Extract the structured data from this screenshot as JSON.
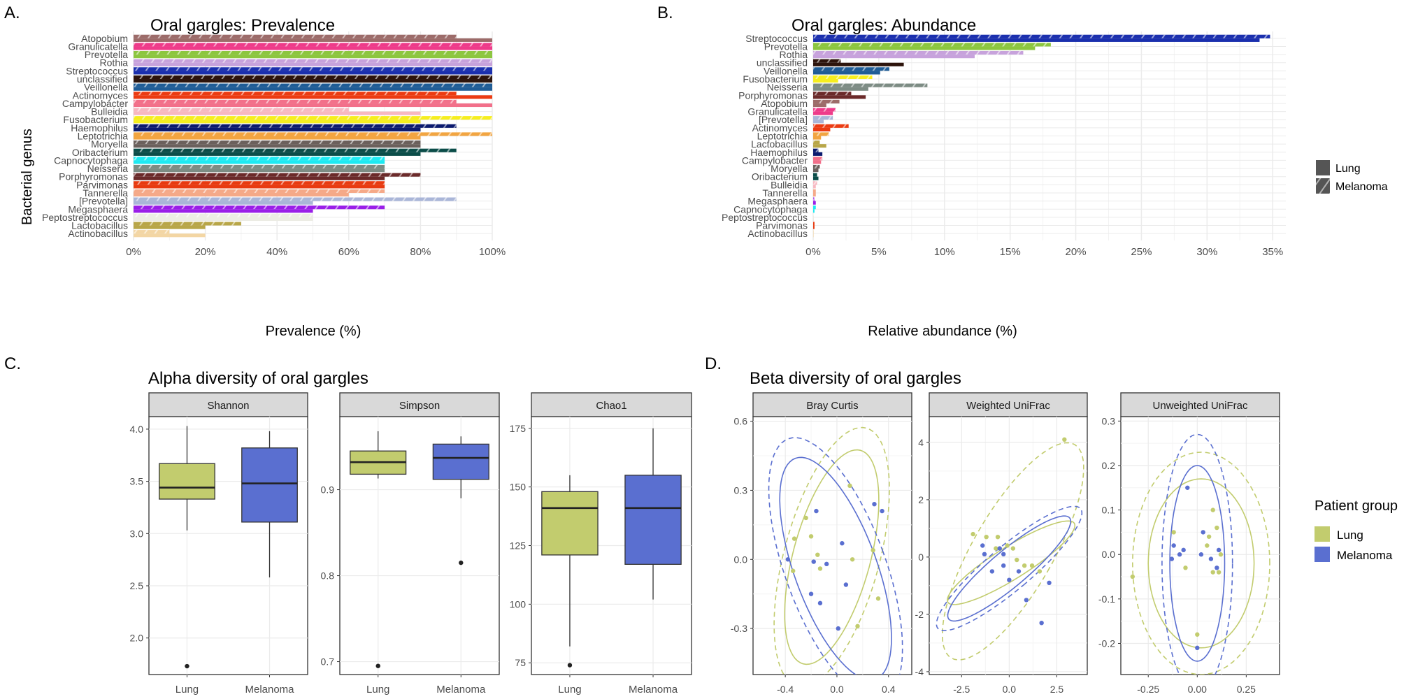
{
  "colors": {
    "lung": "#c2cc6e",
    "melanoma": "#5a6fd0",
    "strip": "#d9d9d9",
    "grid": "#ebebeb",
    "genus": {
      "Atopobium": "#9c6b69",
      "Granulicatella": "#ee3b8a",
      "Prevotella": "#8cc63f",
      "Rothia": "#c7a2dc",
      "Streptococcus": "#1a2fae",
      "unclassified": "#2d140c",
      "Veillonella": "#1f5c96",
      "Actinomyces": "#ec3b12",
      "Campylobacter": "#f2708a",
      "Bulleidia": "#f7b8c1",
      "Fusobacterium": "#f6ee1e",
      "Haemophilus": "#0b1a6e",
      "Leptotrichia": "#f2a541",
      "Moryella": "#6b605c",
      "Oribacterium": "#0b4d49",
      "Capnocytophaga": "#1eeaf2",
      "Neisseria": "#7d8c84",
      "Porphyromonas": "#6b2a2a",
      "Parvimonas": "#e83a10",
      "Tannerella": "#f5a988",
      "[Prevotella]": "#aab6d8",
      "Megasphaera": "#9a1ee8",
      "Peptostreptococcus": "#ecece4",
      "Lactobacillus": "#b8a648",
      "Actinobacillus": "#f3d6a4"
    }
  },
  "panels": {
    "a": {
      "label": "A.",
      "title": "Oral gargles: Prevalence"
    },
    "b": {
      "label": "B.",
      "title": "Oral gargles: Abundance"
    },
    "c": {
      "label": "C.",
      "title": "Alpha diversity of oral gargles"
    },
    "d": {
      "label": "D.",
      "title": "Beta diversity of oral gargles"
    }
  },
  "legend_bars": {
    "lung": "Lung",
    "melanoma": "Melanoma"
  },
  "legend_group": {
    "title": "Patient group",
    "lung": "Lung",
    "melanoma": "Melanoma"
  },
  "chart_data": [
    {
      "id": "prevalence",
      "type": "bar",
      "orientation": "horizontal",
      "title": "Oral gargles: Prevalence",
      "xlabel": "Prevalence (%)",
      "ylabel": "Bacterial genus",
      "xlim": [
        0,
        100
      ],
      "xticks": [
        0,
        20,
        40,
        60,
        80,
        100
      ],
      "xtick_labels": [
        "0%",
        "20%",
        "40%",
        "60%",
        "80%",
        "100%"
      ],
      "categories": [
        "Atopobium",
        "Granulicatella",
        "Prevotella",
        "Rothia",
        "Streptococcus",
        "unclassified",
        "Veillonella",
        "Actinomyces",
        "Campylobacter",
        "Bulleidia",
        "Fusobacterium",
        "Haemophilus",
        "Leptotrichia",
        "Moryella",
        "Oribacterium",
        "Capnocytophaga",
        "Neisseria",
        "Porphyromonas",
        "Parvimonas",
        "Tannerella",
        "[Prevotella]",
        "Megasphaera",
        "Peptostreptococcus",
        "Lactobacillus",
        "Actinobacillus"
      ],
      "series": [
        {
          "name": "Melanoma",
          "values": [
            90,
            100,
            100,
            100,
            100,
            100,
            100,
            90,
            90,
            60,
            100,
            90,
            100,
            80,
            90,
            70,
            70,
            80,
            70,
            70,
            90,
            70,
            50,
            30,
            10
          ]
        },
        {
          "name": "Lung",
          "values": [
            100,
            100,
            100,
            100,
            100,
            100,
            100,
            100,
            100,
            80,
            80,
            80,
            80,
            80,
            80,
            70,
            70,
            70,
            70,
            60,
            50,
            50,
            50,
            20,
            20
          ]
        }
      ]
    },
    {
      "id": "abundance",
      "type": "bar",
      "orientation": "horizontal",
      "title": "Oral gargles: Abundance",
      "xlabel": "Relative abundance (%)",
      "xlim": [
        0,
        36
      ],
      "xticks": [
        0,
        5,
        10,
        15,
        20,
        25,
        30,
        35
      ],
      "xtick_labels": [
        "0%",
        "5%",
        "10%",
        "15%",
        "20%",
        "25%",
        "30%",
        "35%"
      ],
      "categories": [
        "Streptococcus",
        "Prevotella",
        "Rothia",
        "unclassified",
        "Veillonella",
        "Fusobacterium",
        "Neisseria",
        "Porphyromonas",
        "Atopobium",
        "Granulicatella",
        "[Prevotella]",
        "Actinomyces",
        "Leptotrichia",
        "Lactobacillus",
        "Haemophilus",
        "Campylobacter",
        "Moryella",
        "Oribacterium",
        "Bulleidia",
        "Tannerella",
        "Megasphaera",
        "Capnocytophaga",
        "Peptostreptococcus",
        "Parvimonas",
        "Actinobacillus"
      ],
      "series": [
        {
          "name": "Melanoma",
          "values": [
            34.8,
            18.1,
            16.0,
            2.1,
            5.8,
            4.5,
            8.7,
            2.9,
            2.0,
            1.7,
            1.5,
            2.7,
            1.2,
            0.5,
            0.4,
            0.7,
            0.5,
            0.3,
            0.3,
            0.2,
            0.1,
            0.2,
            0.05,
            0.1,
            0.03
          ]
        },
        {
          "name": "Lung",
          "values": [
            34.0,
            16.9,
            12.3,
            6.9,
            5.1,
            1.9,
            4.2,
            4.0,
            1.0,
            1.5,
            0.8,
            1.3,
            0.6,
            1.0,
            0.7,
            0.6,
            0.4,
            0.4,
            0.2,
            0.2,
            0.2,
            0.1,
            0.05,
            0.1,
            0.03
          ]
        }
      ],
      "legend": [
        "Lung",
        "Melanoma"
      ]
    },
    {
      "id": "alpha",
      "type": "boxplot",
      "title": "Alpha diversity of oral gargles",
      "groups": [
        "Lung",
        "Melanoma"
      ],
      "facets": [
        {
          "name": "Shannon",
          "ylim": [
            1.65,
            4.12
          ],
          "yticks": [
            2.0,
            2.5,
            3.0,
            3.5,
            4.0
          ],
          "ytick_labels": [
            "2.0",
            "2.5",
            "3.0",
            "3.5",
            "4.0"
          ],
          "boxes": [
            {
              "group": "Lung",
              "min": 3.03,
              "q1": 3.33,
              "median": 3.44,
              "q3": 3.67,
              "max": 4.03,
              "outliers": [
                1.73
              ]
            },
            {
              "group": "Melanoma",
              "min": 2.58,
              "q1": 3.11,
              "median": 3.48,
              "q3": 3.82,
              "max": 3.98,
              "outliers": []
            }
          ]
        },
        {
          "name": "Simpson",
          "ylim": [
            0.685,
            0.985
          ],
          "yticks": [
            0.7,
            0.8,
            0.9
          ],
          "ytick_labels": [
            "0.7",
            "0.8",
            "0.9"
          ],
          "boxes": [
            {
              "group": "Lung",
              "min": 0.913,
              "q1": 0.918,
              "median": 0.932,
              "q3": 0.945,
              "max": 0.968,
              "outliers": [
                0.695
              ]
            },
            {
              "group": "Melanoma",
              "min": 0.89,
              "q1": 0.912,
              "median": 0.937,
              "q3": 0.953,
              "max": 0.962,
              "outliers": [
                0.815
              ]
            }
          ]
        },
        {
          "name": "Chao1",
          "ylim": [
            70,
            180
          ],
          "yticks": [
            75,
            100,
            125,
            150,
            175
          ],
          "ytick_labels": [
            "75",
            "100",
            "125",
            "150",
            "175"
          ],
          "boxes": [
            {
              "group": "Lung",
              "min": 82,
              "q1": 121,
              "median": 141,
              "q3": 148,
              "max": 155,
              "outliers": [
                74
              ]
            },
            {
              "group": "Melanoma",
              "min": 102,
              "q1": 117,
              "median": 141,
              "q3": 155,
              "max": 175,
              "outliers": []
            }
          ]
        }
      ]
    },
    {
      "id": "beta",
      "type": "scatter",
      "title": "Beta diversity of oral gargles",
      "legend_title": "Patient group",
      "groups": [
        "Lung",
        "Melanoma"
      ],
      "facets": [
        {
          "name": "Bray Curtis",
          "xlim": [
            -0.65,
            0.58
          ],
          "ylim": [
            -0.5,
            0.62
          ],
          "xticks": [
            -0.4,
            0.0,
            0.4
          ],
          "xtick_labels": [
            "-0.4",
            "0.0",
            "0.4"
          ],
          "yticks": [
            -0.3,
            0.0,
            0.3,
            0.6
          ],
          "ytick_labels": [
            "-0.3",
            "0.0",
            "0.3",
            "0.6"
          ],
          "lung": [
            [
              -0.24,
              0.18
            ],
            [
              -0.2,
              0.1
            ],
            [
              -0.33,
              0.09
            ],
            [
              -0.15,
              0.02
            ],
            [
              -0.13,
              -0.04
            ],
            [
              -0.34,
              -0.05
            ],
            [
              0.1,
              0.32
            ],
            [
              0.12,
              0.0
            ],
            [
              0.16,
              -0.29
            ],
            [
              0.32,
              -0.17
            ],
            [
              0.28,
              0.04
            ]
          ],
          "melanoma": [
            [
              -0.16,
              0.21
            ],
            [
              -0.18,
              -0.01
            ],
            [
              -0.08,
              -0.02
            ],
            [
              0.29,
              0.24
            ],
            [
              0.35,
              0.21
            ],
            [
              0.04,
              0.07
            ],
            [
              0.07,
              -0.11
            ],
            [
              -0.2,
              -0.15
            ],
            [
              -0.13,
              -0.19
            ],
            [
              0.01,
              -0.3
            ],
            [
              -0.38,
              0.0
            ]
          ],
          "ellipses": [
            {
              "group": "Lung",
              "style": "solid",
              "cx": -0.04,
              "cy": 0.01,
              "rx": 0.3,
              "ry": 0.48,
              "angle": -15
            },
            {
              "group": "Lung",
              "style": "dashed",
              "cx": -0.04,
              "cy": 0.01,
              "rx": 0.37,
              "ry": 0.58,
              "angle": -15
            },
            {
              "group": "Melanoma",
              "style": "solid",
              "cx": -0.01,
              "cy": -0.04,
              "rx": 0.32,
              "ry": 0.51,
              "angle": 20
            },
            {
              "group": "Melanoma",
              "style": "dashed",
              "cx": -0.01,
              "cy": -0.04,
              "rx": 0.39,
              "ry": 0.6,
              "angle": 20
            }
          ]
        },
        {
          "name": "Weighted UniFrac",
          "xlim": [
            -4.2,
            4.1
          ],
          "ylim": [
            -4.1,
            4.9
          ],
          "xticks": [
            -2.5,
            0.0,
            2.5
          ],
          "xtick_labels": [
            "-2.5",
            "0.0",
            "2.5"
          ],
          "yticks": [
            -4,
            -2,
            0,
            2,
            4
          ],
          "ytick_labels": [
            "-4",
            "-2",
            "0",
            "2",
            "4"
          ],
          "lung": [
            [
              -1.9,
              0.8
            ],
            [
              -1.2,
              0.7
            ],
            [
              -0.6,
              0.7
            ],
            [
              -0.1,
              0.4
            ],
            [
              0.2,
              0.3
            ],
            [
              0.4,
              -0.1
            ],
            [
              0.8,
              -0.3
            ],
            [
              1.2,
              -0.3
            ],
            [
              1.6,
              -0.5
            ],
            [
              -0.7,
              0.3
            ],
            [
              2.9,
              4.1
            ]
          ],
          "melanoma": [
            [
              -1.4,
              0.4
            ],
            [
              -0.5,
              0.3
            ],
            [
              -0.3,
              0.1
            ],
            [
              -0.3,
              -0.3
            ],
            [
              -0.9,
              -0.5
            ],
            [
              0.0,
              -0.8
            ],
            [
              0.5,
              -0.5
            ],
            [
              0.9,
              -1.5
            ],
            [
              1.7,
              -2.3
            ],
            [
              2.1,
              -0.9
            ],
            [
              -1.3,
              0.1
            ]
          ],
          "ellipses": [
            {
              "group": "Lung",
              "style": "solid",
              "cx": 0.1,
              "cy": -0.2,
              "rx": 0.85,
              "ry": 2.6,
              "angle": -58
            },
            {
              "group": "Lung",
              "style": "dashed",
              "cx": 0.2,
              "cy": 0.2,
              "rx": 2.1,
              "ry": 4.3,
              "angle": -30
            },
            {
              "group": "Melanoma",
              "style": "solid",
              "cx": 0.0,
              "cy": -0.4,
              "rx": 0.95,
              "ry": 2.75,
              "angle": -50
            },
            {
              "group": "Melanoma",
              "style": "dashed",
              "cx": 0.0,
              "cy": -0.4,
              "rx": 1.15,
              "ry": 3.25,
              "angle": -50
            }
          ]
        },
        {
          "name": "Unweighted UniFrac",
          "xlim": [
            -0.39,
            0.42
          ],
          "ylim": [
            -0.27,
            0.31
          ],
          "xticks": [
            -0.25,
            0.0,
            0.25
          ],
          "xtick_labels": [
            "-0.25",
            "0.00",
            "0.25"
          ],
          "yticks": [
            -0.2,
            -0.1,
            0.0,
            0.1,
            0.2,
            0.3
          ],
          "ytick_labels": [
            "-0.2",
            "-0.1",
            "0.0",
            "0.1",
            "0.2",
            "0.3"
          ],
          "lung": [
            [
              0.08,
              0.1
            ],
            [
              0.1,
              0.06
            ],
            [
              0.06,
              0.04
            ],
            [
              0.12,
              0.0
            ],
            [
              0.08,
              -0.04
            ],
            [
              0.11,
              -0.04
            ],
            [
              -0.33,
              -0.05
            ],
            [
              -0.06,
              -0.03
            ],
            [
              0.0,
              -0.18
            ],
            [
              -0.12,
              0.05
            ],
            [
              0.05,
              0.02
            ]
          ],
          "melanoma": [
            [
              -0.05,
              0.15
            ],
            [
              0.03,
              0.05
            ],
            [
              -0.12,
              0.02
            ],
            [
              -0.07,
              0.01
            ],
            [
              -0.13,
              -0.01
            ],
            [
              0.02,
              0.0
            ],
            [
              0.11,
              0.01
            ],
            [
              0.1,
              -0.03
            ],
            [
              0.0,
              -0.21
            ],
            [
              -0.09,
              0.0
            ],
            [
              0.07,
              -0.01
            ]
          ],
          "ellipses": [
            {
              "group": "Lung",
              "style": "solid",
              "cx": 0.02,
              "cy": -0.02,
              "rx": 0.27,
              "ry": 0.19,
              "angle": 0
            },
            {
              "group": "Lung",
              "style": "dashed",
              "cx": 0.02,
              "cy": -0.02,
              "rx": 0.35,
              "ry": 0.25,
              "angle": 0
            },
            {
              "group": "Melanoma",
              "style": "solid",
              "cx": 0.0,
              "cy": -0.02,
              "rx": 0.14,
              "ry": 0.22,
              "angle": 0
            },
            {
              "group": "Melanoma",
              "style": "dashed",
              "cx": 0.0,
              "cy": -0.02,
              "rx": 0.18,
              "ry": 0.29,
              "angle": 0
            }
          ]
        }
      ]
    }
  ]
}
